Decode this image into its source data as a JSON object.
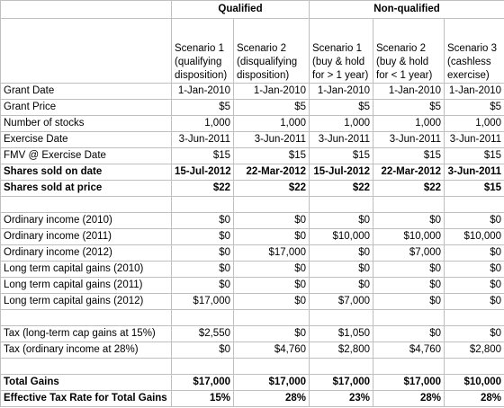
{
  "header": {
    "groups": [
      "Qualified",
      "Non-qualified"
    ],
    "scenarios": [
      [
        "Scenario 1",
        "(qualifying",
        "disposition)"
      ],
      [
        "Scenario 2",
        "(disqualifying",
        "disposition)"
      ],
      [
        "Scenario 1",
        "(buy & hold",
        "for > 1 year)"
      ],
      [
        "Scenario 2",
        "(buy & hold",
        "for < 1 year)"
      ],
      [
        "Scenario 3",
        "(cashless",
        "exercise)"
      ]
    ]
  },
  "sections": [
    {
      "rows": [
        {
          "label": "Grant Date",
          "values": [
            "1-Jan-2010",
            "1-Jan-2010",
            "1-Jan-2010",
            "1-Jan-2010",
            "1-Jan-2010"
          ]
        },
        {
          "label": "Grant Price",
          "values": [
            "$5",
            "$5",
            "$5",
            "$5",
            "$5"
          ]
        },
        {
          "label": "Number of stocks",
          "values": [
            "1,000",
            "1,000",
            "1,000",
            "1,000",
            "1,000"
          ]
        },
        {
          "label": "Exercise Date",
          "values": [
            "3-Jun-2011",
            "3-Jun-2011",
            "3-Jun-2011",
            "3-Jun-2011",
            "3-Jun-2011"
          ]
        },
        {
          "label": "FMV @ Exercise Date",
          "values": [
            "$15",
            "$15",
            "$15",
            "$15",
            "$15"
          ]
        },
        {
          "label": "Shares sold on date",
          "bold": true,
          "values": [
            "15-Jul-2012",
            "22-Mar-2012",
            "15-Jul-2012",
            "22-Mar-2012",
            "3-Jun-2011"
          ]
        },
        {
          "label": "Shares sold at price",
          "bold": true,
          "values": [
            "$22",
            "$22",
            "$22",
            "$22",
            "$15"
          ]
        }
      ]
    },
    {
      "rows": [
        {
          "label": "Ordinary income (2010)",
          "values": [
            "$0",
            "$0",
            "$0",
            "$0",
            "$0"
          ]
        },
        {
          "label": "Ordinary income (2011)",
          "values": [
            "$0",
            "$0",
            "$10,000",
            "$10,000",
            "$10,000"
          ]
        },
        {
          "label": "Ordinary income (2012)",
          "values": [
            "$0",
            "$17,000",
            "$0",
            "$7,000",
            "$0"
          ]
        },
        {
          "label": "Long term capital gains (2010)",
          "values": [
            "$0",
            "$0",
            "$0",
            "$0",
            "$0"
          ]
        },
        {
          "label": "Long term capital gains (2011)",
          "values": [
            "$0",
            "$0",
            "$0",
            "$0",
            "$0"
          ]
        },
        {
          "label": "Long term capital gains (2012)",
          "values": [
            "$17,000",
            "$0",
            "$7,000",
            "$0",
            "$0"
          ]
        }
      ]
    },
    {
      "rows": [
        {
          "label": "Tax (long-term cap gains at 15%)",
          "values": [
            "$2,550",
            "$0",
            "$1,050",
            "$0",
            "$0"
          ]
        },
        {
          "label": "Tax (ordinary income at 28%)",
          "values": [
            "$0",
            "$4,760",
            "$2,800",
            "$4,760",
            "$2,800"
          ]
        }
      ]
    },
    {
      "rows": [
        {
          "label": "Total Gains",
          "bold": true,
          "values": [
            "$17,000",
            "$17,000",
            "$17,000",
            "$17,000",
            "$10,000"
          ]
        },
        {
          "label": "Effective Tax Rate for Total Gains",
          "bold": true,
          "values": [
            "15%",
            "28%",
            "23%",
            "28%",
            "28%"
          ]
        }
      ]
    }
  ]
}
